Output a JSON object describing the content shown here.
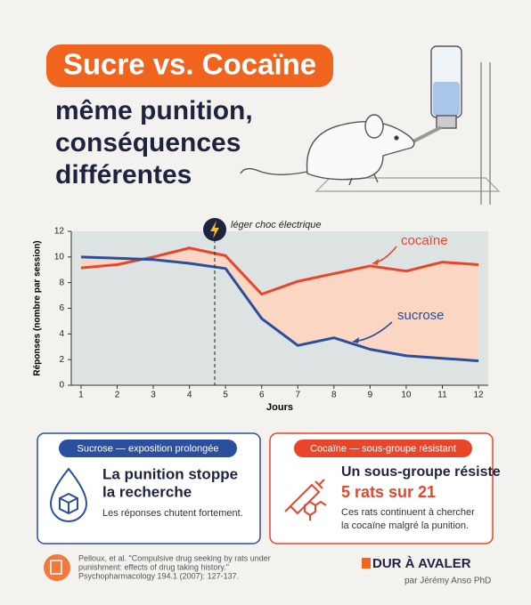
{
  "header": {
    "badge": "Sucre vs. Cocaïne",
    "subtitle_lines": [
      "même punition,",
      "conséquences",
      "différentes"
    ]
  },
  "chart_data": {
    "type": "line",
    "x": [
      1,
      2,
      3,
      4,
      5,
      6,
      7,
      8,
      9,
      10,
      11,
      12
    ],
    "xlim": [
      0.73,
      12.27
    ],
    "xticks": [
      1,
      2,
      3,
      4,
      5,
      6,
      7,
      8,
      9,
      10,
      11,
      12
    ],
    "ylim": [
      0,
      12
    ],
    "yticks": [
      0,
      2,
      4,
      6,
      8,
      10,
      12
    ],
    "xlabel": "Jours",
    "ylabel": "Réponses (nombre par session)",
    "annotation": {
      "text": "léger choc électrique",
      "x": 4.7
    },
    "series": [
      {
        "name": "cocaïne",
        "color": "#e8452a",
        "values": [
          9.15,
          9.4,
          10.0,
          10.7,
          10.1,
          7.1,
          8.1,
          8.7,
          9.3,
          8.9,
          9.6,
          9.4
        ]
      },
      {
        "name": "sucrose",
        "color": "#2a4f9e",
        "values": [
          10.0,
          9.9,
          9.8,
          9.5,
          9.1,
          5.2,
          3.1,
          3.7,
          2.8,
          2.3,
          2.1,
          1.9
        ]
      }
    ],
    "fill_between_color": "#fbd6c2",
    "background": "#dde3e2"
  },
  "cards": [
    {
      "header": "Sucrose — exposition prolongée",
      "title_lines": [
        "La punition stoppe",
        "la recherche"
      ],
      "text_lines": [
        "Les réponses chutent fortement."
      ]
    },
    {
      "header": "Cocaïne — sous-groupe résistant",
      "title_lines": [
        "Un sous-groupe résiste",
        "5 rats sur 21"
      ],
      "text_lines": [
        "Ces rats continuent à chercher",
        "la cocaïne malgré la punition."
      ]
    }
  ],
  "footer": {
    "citation_lines": [
      "Pelloux, et al. \"Compulsive drug seeking by rats under",
      "punishment: effects of drug taking history.\"",
      "Psychopharmacology 194.1 (2007): 127-137."
    ],
    "logo": "DUR À AVALER",
    "author": "par Jérémy Anso PhD"
  }
}
